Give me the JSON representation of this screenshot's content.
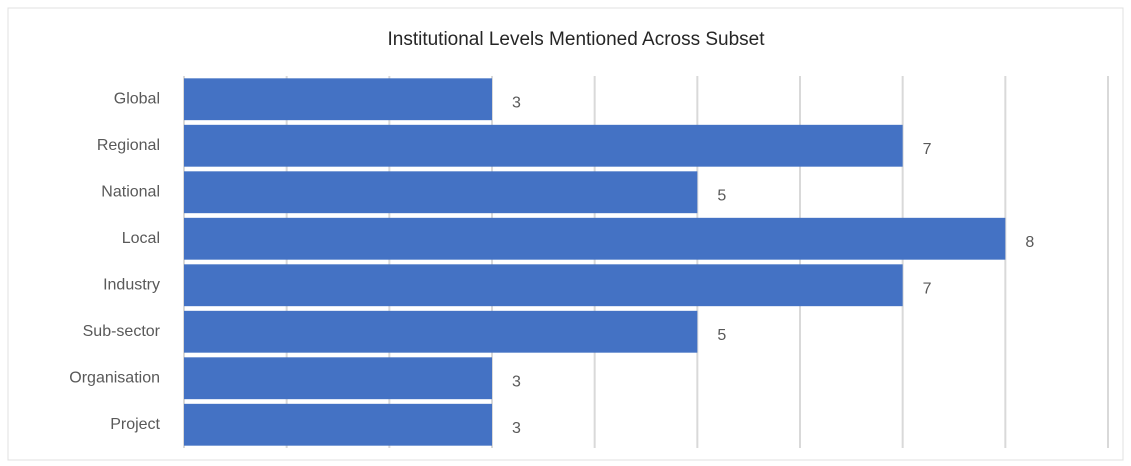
{
  "chart_data": {
    "type": "barh",
    "title": "Institutional Levels Mentioned Across Subset",
    "categories": [
      "Global",
      "Regional",
      "National",
      "Local",
      "Industry",
      "Sub-sector",
      "Organisation",
      "Project"
    ],
    "values": [
      3,
      7,
      5,
      8,
      7,
      5,
      3,
      3
    ],
    "color": "#4472c4",
    "xlim": [
      0,
      9
    ],
    "xticks": [
      0,
      1,
      2,
      3,
      4,
      5,
      6,
      7,
      8,
      9
    ],
    "grid": true
  }
}
